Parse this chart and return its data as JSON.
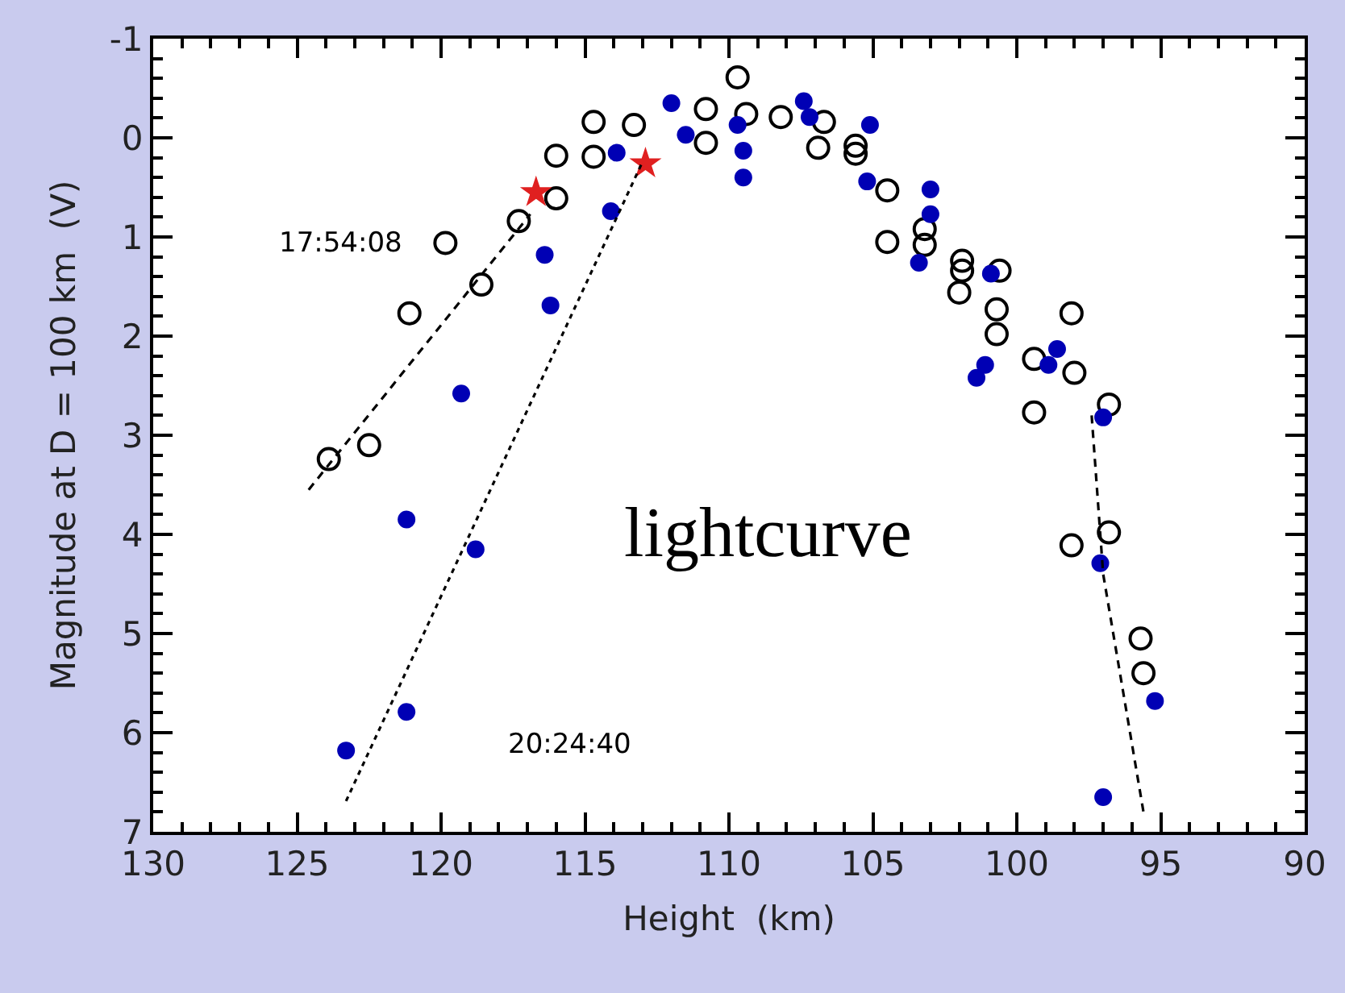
{
  "chart_data": {
    "type": "scatter",
    "xlabel": "Height  (km)",
    "ylabel": "Magnitude at D = 100 km  (V)",
    "xlim": [
      130,
      90
    ],
    "xticks": [
      130,
      125,
      120,
      115,
      110,
      105,
      100,
      95,
      90
    ],
    "ylim": [
      7,
      -1
    ],
    "yticks": [
      -1,
      0,
      1,
      2,
      3,
      4,
      5,
      6,
      7
    ],
    "legend": false,
    "annotations": [
      "17:54:08",
      "20:24:40",
      "lightcurve"
    ],
    "series": [
      {
        "marker": "circle",
        "color": "#000000",
        "x": [
          123.9,
          122.5,
          121.1,
          119.85,
          118.6,
          117.3,
          116.0,
          116.0,
          114.7,
          114.7,
          113.3,
          110.8,
          110.8,
          109.7,
          109.4,
          108.2,
          106.7,
          106.9,
          105.6,
          105.6,
          104.5,
          104.5,
          103.2,
          103.2,
          101.9,
          101.9,
          102.0,
          100.6,
          100.7,
          100.7,
          99.4,
          98.1,
          98.0,
          99.4,
          96.8,
          98.1,
          96.8,
          95.7,
          95.6
        ],
        "values": [
          3.24,
          3.1,
          1.77,
          1.06,
          1.48,
          0.84,
          0.61,
          0.18,
          0.19,
          -0.16,
          -0.13,
          -0.29,
          0.05,
          -0.61,
          -0.24,
          -0.21,
          -0.16,
          0.1,
          0.08,
          0.16,
          0.53,
          1.05,
          0.92,
          1.08,
          1.24,
          1.34,
          1.56,
          1.34,
          1.73,
          1.98,
          2.23,
          1.77,
          2.37,
          2.77,
          2.69,
          4.11,
          3.98,
          5.05,
          5.4
        ]
      },
      {
        "marker": "circle",
        "color": "#0000b4",
        "x": [
          119.3,
          116.2,
          116.4,
          114.1,
          113.9,
          112.0,
          111.5,
          109.7,
          109.5,
          109.5,
          107.4,
          107.2,
          105.1,
          105.2,
          103.0,
          103.0,
          103.4,
          100.9,
          101.1,
          101.4,
          98.6,
          98.9,
          97.0,
          121.2,
          118.8,
          121.2,
          123.3,
          97.1,
          95.2,
          97.0
        ],
        "values": [
          2.58,
          1.69,
          1.18,
          0.74,
          0.15,
          -0.35,
          -0.03,
          -0.13,
          0.13,
          0.4,
          -0.37,
          -0.21,
          -0.13,
          0.44,
          0.52,
          0.77,
          1.26,
          1.37,
          2.29,
          2.42,
          2.13,
          2.29,
          2.82,
          3.85,
          4.15,
          5.79,
          6.18,
          4.29,
          5.68,
          6.65
        ]
      },
      {
        "marker": "star",
        "color": "#e02020",
        "x": [
          116.7,
          112.9
        ],
        "values": [
          0.55,
          0.26
        ]
      },
      {
        "type": "line",
        "line_style": "dashed",
        "color": "#000000",
        "x": [
          124.6,
          116.9
        ],
        "values": [
          3.55,
          0.77
        ]
      },
      {
        "type": "line",
        "line_style": "dotted",
        "color": "#000000",
        "x": [
          123.3,
          113.0
        ],
        "values": [
          6.69,
          0.24
        ]
      },
      {
        "type": "line",
        "line_style": "dashed",
        "color": "#000000",
        "x": [
          97.4,
          97.0,
          95.6
        ],
        "values": [
          2.8,
          4.4,
          6.8
        ]
      }
    ]
  }
}
